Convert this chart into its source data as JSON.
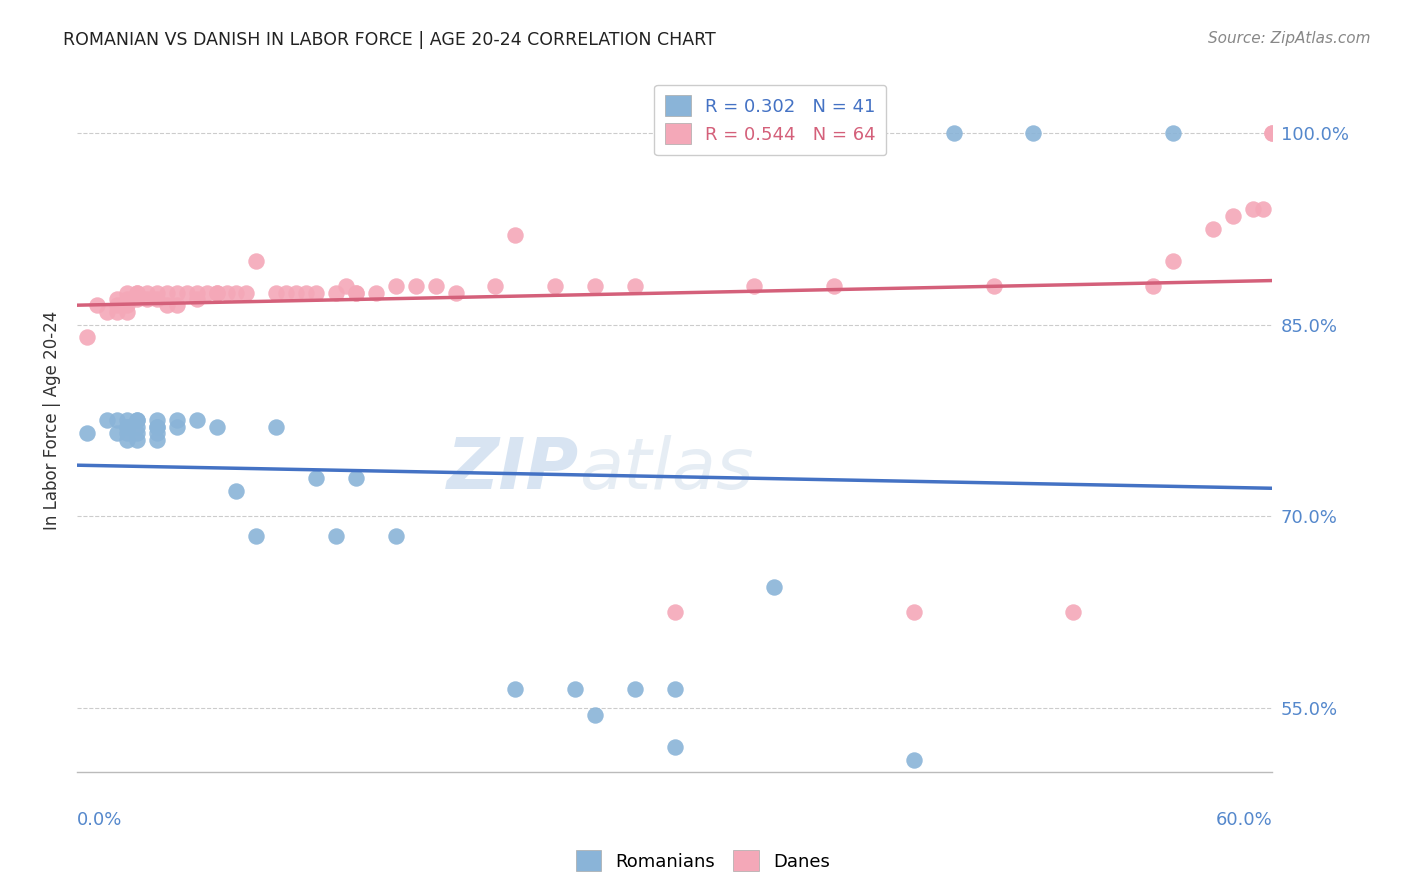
{
  "title": "ROMANIAN VS DANISH IN LABOR FORCE | AGE 20-24 CORRELATION CHART",
  "source": "Source: ZipAtlas.com",
  "ylabel": "In Labor Force | Age 20-24",
  "yticks": [
    0.55,
    0.7,
    0.85,
    1.0
  ],
  "ytick_labels": [
    "55.0%",
    "70.0%",
    "85.0%",
    "100.0%"
  ],
  "xmin": 0.0,
  "xmax": 0.6,
  "ymin": 0.5,
  "ymax": 1.05,
  "legend_blue_r": "R = 0.302",
  "legend_blue_n": "N = 41",
  "legend_pink_r": "R = 0.544",
  "legend_pink_n": "N = 64",
  "blue_color": "#8ab4d8",
  "pink_color": "#f4a8b8",
  "blue_line_color": "#4472c4",
  "pink_line_color": "#d4607a",
  "watermark_zip": "ZIP",
  "watermark_atlas": "atlas",
  "romanians_x": [
    0.005,
    0.015,
    0.02,
    0.02,
    0.025,
    0.025,
    0.025,
    0.025,
    0.025,
    0.03,
    0.03,
    0.03,
    0.03,
    0.03,
    0.04,
    0.04,
    0.04,
    0.04,
    0.04,
    0.05,
    0.05,
    0.06,
    0.07,
    0.08,
    0.09,
    0.1,
    0.12,
    0.13,
    0.14,
    0.16,
    0.22,
    0.25,
    0.26,
    0.28,
    0.3,
    0.3,
    0.35,
    0.42,
    0.44,
    0.48,
    0.55
  ],
  "romanians_y": [
    0.765,
    0.775,
    0.775,
    0.765,
    0.775,
    0.77,
    0.77,
    0.765,
    0.76,
    0.775,
    0.77,
    0.775,
    0.765,
    0.76,
    0.775,
    0.77,
    0.77,
    0.765,
    0.76,
    0.775,
    0.77,
    0.775,
    0.77,
    0.72,
    0.685,
    0.77,
    0.73,
    0.685,
    0.73,
    0.685,
    0.565,
    0.565,
    0.545,
    0.565,
    0.565,
    0.52,
    0.645,
    0.51,
    1.0,
    1.0,
    1.0
  ],
  "danes_x": [
    0.005,
    0.01,
    0.015,
    0.02,
    0.02,
    0.02,
    0.025,
    0.025,
    0.025,
    0.025,
    0.03,
    0.03,
    0.03,
    0.035,
    0.035,
    0.04,
    0.04,
    0.045,
    0.045,
    0.05,
    0.05,
    0.055,
    0.06,
    0.06,
    0.065,
    0.07,
    0.07,
    0.075,
    0.08,
    0.085,
    0.09,
    0.1,
    0.105,
    0.11,
    0.115,
    0.12,
    0.13,
    0.135,
    0.14,
    0.14,
    0.15,
    0.16,
    0.17,
    0.18,
    0.19,
    0.21,
    0.22,
    0.24,
    0.26,
    0.28,
    0.3,
    0.34,
    0.38,
    0.42,
    0.46,
    0.5,
    0.54,
    0.55,
    0.57,
    0.58,
    0.59,
    0.595,
    0.6,
    0.6
  ],
  "danes_y": [
    0.84,
    0.865,
    0.86,
    0.865,
    0.87,
    0.86,
    0.875,
    0.87,
    0.865,
    0.86,
    0.875,
    0.87,
    0.875,
    0.875,
    0.87,
    0.875,
    0.87,
    0.875,
    0.865,
    0.875,
    0.865,
    0.875,
    0.87,
    0.875,
    0.875,
    0.875,
    0.875,
    0.875,
    0.875,
    0.875,
    0.9,
    0.875,
    0.875,
    0.875,
    0.875,
    0.875,
    0.875,
    0.88,
    0.875,
    0.875,
    0.875,
    0.88,
    0.88,
    0.88,
    0.875,
    0.88,
    0.92,
    0.88,
    0.88,
    0.88,
    0.625,
    0.88,
    0.88,
    0.625,
    0.88,
    0.625,
    0.88,
    0.9,
    0.925,
    0.935,
    0.94,
    0.94,
    1.0,
    1.0
  ]
}
